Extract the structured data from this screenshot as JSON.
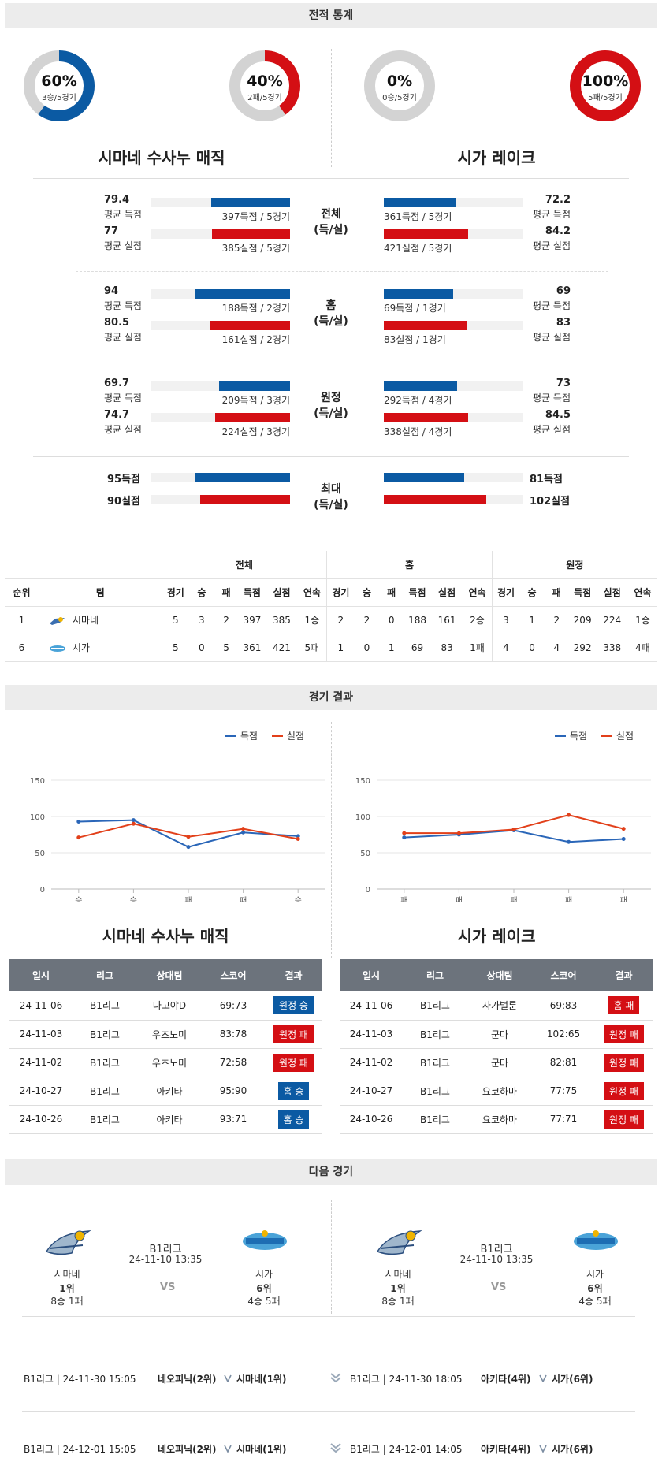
{
  "record": {
    "section_title": "전적 통계",
    "donuts": [
      {
        "pct": "60%",
        "sub": "3승/5경기",
        "value": 60,
        "color": "#0b5aa3"
      },
      {
        "pct": "40%",
        "sub": "2패/5경기",
        "value": 40,
        "color": "#d40f14"
      },
      {
        "pct": "0%",
        "sub": "0승/5경기",
        "value": 0,
        "color": "#0b5aa3"
      },
      {
        "pct": "100%",
        "sub": "5패/5경기",
        "value": 100,
        "color": "#d40f14"
      }
    ],
    "home_team": "시마네 수사누 매직",
    "away_team": "시가 레이크",
    "groups": [
      {
        "mid": [
          "전체",
          "(득/실)"
        ],
        "left": [
          {
            "num": "79.4",
            "lbl": "평균 득점",
            "bar_text": "397득점 / 5경기",
            "frac": 0.57
          },
          {
            "num": "77",
            "lbl": "평균 실점",
            "bar_text": "385실점 / 5경기",
            "frac": 0.56
          }
        ],
        "right": [
          {
            "num": "72.2",
            "lbl": "평균 득점",
            "bar_text": "361득점 / 5경기",
            "frac": 0.52
          },
          {
            "num": "84.2",
            "lbl": "평균 실점",
            "bar_text": "421실점 / 5경기",
            "frac": 0.61
          }
        ]
      },
      {
        "mid": [
          "홈",
          "(득/실)"
        ],
        "left": [
          {
            "num": "94",
            "lbl": "평균 득점",
            "bar_text": "188득점 / 2경기",
            "frac": 0.68
          },
          {
            "num": "80.5",
            "lbl": "평균 실점",
            "bar_text": "161실점 / 2경기",
            "frac": 0.58
          }
        ],
        "right": [
          {
            "num": "69",
            "lbl": "평균 득점",
            "bar_text": "69득점 / 1경기",
            "frac": 0.5
          },
          {
            "num": "83",
            "lbl": "평균 실점",
            "bar_text": "83실점 / 1경기",
            "frac": 0.6
          }
        ]
      },
      {
        "mid": [
          "원정",
          "(득/실)"
        ],
        "left": [
          {
            "num": "69.7",
            "lbl": "평균 득점",
            "bar_text": "209득점 / 3경기",
            "frac": 0.51
          },
          {
            "num": "74.7",
            "lbl": "평균 실점",
            "bar_text": "224실점 / 3경기",
            "frac": 0.54
          }
        ],
        "right": [
          {
            "num": "73",
            "lbl": "평균 득점",
            "bar_text": "292득점 / 4경기",
            "frac": 0.53
          },
          {
            "num": "84.5",
            "lbl": "평균 실점",
            "bar_text": "338실점 / 4경기",
            "frac": 0.61
          }
        ]
      },
      {
        "mid": [
          "최대",
          "(득/실)"
        ],
        "left": [
          {
            "num": "95득점",
            "frac": 0.68
          },
          {
            "num": "90실점",
            "frac": 0.65
          }
        ],
        "right": [
          {
            "num": "81득점",
            "frac": 0.58
          },
          {
            "num": "102실점",
            "frac": 0.74
          }
        ]
      }
    ]
  },
  "standings": {
    "group_headers": [
      "전체",
      "홈",
      "원정"
    ],
    "cols": [
      "순위",
      "팀",
      "경기",
      "승",
      "패",
      "득점",
      "실점",
      "연속",
      "경기",
      "승",
      "패",
      "득점",
      "실점",
      "연속",
      "경기",
      "승",
      "패",
      "득점",
      "실점",
      "연속"
    ],
    "rows": [
      [
        "1",
        "시마네",
        "5",
        "3",
        "2",
        "397",
        "385",
        "1승",
        "2",
        "2",
        "0",
        "188",
        "161",
        "2승",
        "3",
        "1",
        "2",
        "209",
        "224",
        "1승"
      ],
      [
        "6",
        "시가",
        "5",
        "0",
        "5",
        "361",
        "421",
        "5패",
        "1",
        "0",
        "1",
        "69",
        "83",
        "1패",
        "4",
        "0",
        "4",
        "292",
        "338",
        "4패"
      ]
    ]
  },
  "results": {
    "section_title": "경기 결과",
    "legend": {
      "scored": "득점",
      "conceded": "실점"
    },
    "chart_data": [
      {
        "type": "line",
        "categories": [
          "승",
          "승",
          "패",
          "패",
          "승"
        ],
        "ylim": [
          0,
          150
        ],
        "yticks": [
          0,
          50,
          100,
          150
        ],
        "series": [
          {
            "name": "득점",
            "values": [
              93,
              95,
              58,
              78,
              73
            ],
            "color": "#2a66b8"
          },
          {
            "name": "실점",
            "values": [
              71,
              90,
              72,
              83,
              69
            ],
            "color": "#e2401a"
          }
        ]
      },
      {
        "type": "line",
        "categories": [
          "패",
          "패",
          "패",
          "패",
          "패"
        ],
        "ylim": [
          0,
          150
        ],
        "yticks": [
          0,
          50,
          100,
          150
        ],
        "series": [
          {
            "name": "득점",
            "values": [
              71,
              75,
              81,
              65,
              69
            ],
            "color": "#2a66b8"
          },
          {
            "name": "실점",
            "values": [
              77,
              77,
              82,
              102,
              83
            ],
            "color": "#e2401a"
          }
        ]
      }
    ],
    "home_team": "시마네 수사누 매직",
    "away_team": "시가 레이크",
    "table_headers": [
      "일시",
      "리그",
      "상대팀",
      "스코어",
      "결과"
    ],
    "left_rows": [
      [
        "24-11-06",
        "B1리그",
        "나고야D",
        "69:73",
        "원정 승",
        "win"
      ],
      [
        "24-11-03",
        "B1리그",
        "우츠노미",
        "83:78",
        "원정 패",
        "loss"
      ],
      [
        "24-11-02",
        "B1리그",
        "우츠노미",
        "72:58",
        "원정 패",
        "loss"
      ],
      [
        "24-10-27",
        "B1리그",
        "아키타",
        "95:90",
        "홈 승",
        "win"
      ],
      [
        "24-10-26",
        "B1리그",
        "아키타",
        "93:71",
        "홈 승",
        "win"
      ]
    ],
    "right_rows": [
      [
        "24-11-06",
        "B1리그",
        "사가벌룬",
        "69:83",
        "홈 패",
        "loss"
      ],
      [
        "24-11-03",
        "B1리그",
        "군마",
        "102:65",
        "원정 패",
        "loss"
      ],
      [
        "24-11-02",
        "B1리그",
        "군마",
        "82:81",
        "원정 패",
        "loss"
      ],
      [
        "24-10-27",
        "B1리그",
        "요코하마",
        "77:75",
        "원정 패",
        "loss"
      ],
      [
        "24-10-26",
        "B1리그",
        "요코하마",
        "77:71",
        "원정 패",
        "loss"
      ]
    ]
  },
  "next": {
    "section_title": "다음 경기",
    "cards": [
      {
        "league": "B1리그",
        "datetime": "24-11-10 13:35",
        "vs": "VS",
        "home": {
          "name": "시마네",
          "rank": "1위",
          "record": "8승 1패"
        },
        "away": {
          "name": "시가",
          "rank": "6위",
          "record": "4승 5패"
        }
      },
      {
        "league": "B1리그",
        "datetime": "24-11-10 13:35",
        "vs": "VS",
        "home": {
          "name": "시마네",
          "rank": "1위",
          "record": "8승 1패"
        },
        "away": {
          "name": "시가",
          "rank": "6위",
          "record": "4승 5패"
        }
      }
    ],
    "fixtures": [
      {
        "left": {
          "info": "B1리그 | 24-11-30 15:05",
          "t1": "네오피닉(2위)",
          "t2": "시마네(1위)"
        },
        "right": {
          "info": "B1리그 | 24-11-30 18:05",
          "t1": "아키타(4위)",
          "t2": "시가(6위)"
        }
      },
      {
        "left": {
          "info": "B1리그 | 24-12-01 15:05",
          "t1": "네오피닉(2위)",
          "t2": "시마네(1위)"
        },
        "right": {
          "info": "B1리그 | 24-12-01 14:05",
          "t1": "아키타(4위)",
          "t2": "시가(6위)"
        }
      }
    ]
  }
}
